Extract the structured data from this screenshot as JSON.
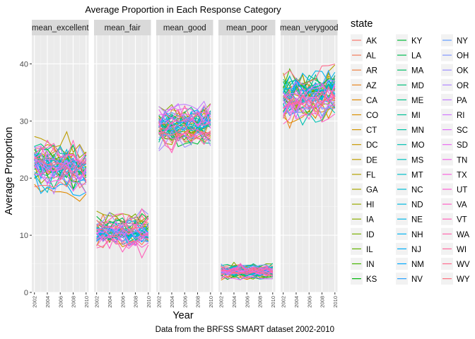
{
  "chart_data": {
    "type": "line",
    "title": "Average Proportion in Each Response Category",
    "xlabel": "Year",
    "ylabel": "Average Proportion",
    "caption": "Data from the BRFSS SMART dataset 2002-2010",
    "x": [
      2002,
      2003,
      2004,
      2005,
      2006,
      2007,
      2008,
      2009,
      2010
    ],
    "x_tick_labels": [
      "2002",
      "2004",
      "2006",
      "2008",
      "2010"
    ],
    "y_ticks": [
      0,
      10,
      20,
      30,
      40
    ],
    "ylim": [
      0,
      45
    ],
    "grid": true,
    "legend_position": "right",
    "legend_title": "state",
    "states": [
      "AK",
      "AL",
      "AR",
      "AZ",
      "CA",
      "CO",
      "CT",
      "DC",
      "DE",
      "FL",
      "GA",
      "HI",
      "IA",
      "ID",
      "IL",
      "IN",
      "KS",
      "KY",
      "LA",
      "MA",
      "MD",
      "ME",
      "MI",
      "MN",
      "MO",
      "MS",
      "MT",
      "NC",
      "ND",
      "NE",
      "NH",
      "NJ",
      "NM",
      "NV",
      "NY",
      "OH",
      "OK",
      "OR",
      "PA",
      "RI",
      "SC",
      "SD",
      "TN",
      "TX",
      "UT",
      "VA",
      "VT",
      "WA",
      "WI",
      "WV",
      "WY"
    ],
    "facets": [
      {
        "name": "mean_excellent",
        "center": 22.0,
        "spread": 2.5,
        "noise": 1.6,
        "trend": -0.12,
        "range": [
          11.5,
          29.5
        ]
      },
      {
        "name": "mean_fair",
        "center": 10.5,
        "spread": 1.5,
        "noise": 1.2,
        "trend": 0.04,
        "range": [
          4.0,
          17.8
        ]
      },
      {
        "name": "mean_good",
        "center": 29.5,
        "spread": 2.0,
        "noise": 1.5,
        "trend": 0.05,
        "range": [
          23.0,
          35.8
        ]
      },
      {
        "name": "mean_poor",
        "center": 3.7,
        "spread": 0.6,
        "noise": 0.6,
        "trend": 0.0,
        "range": [
          1.8,
          9.0
        ]
      },
      {
        "name": "mean_verygood",
        "center": 34.5,
        "spread": 2.6,
        "noise": 1.8,
        "trend": 0.12,
        "range": [
          26.0,
          42.5
        ]
      }
    ]
  }
}
